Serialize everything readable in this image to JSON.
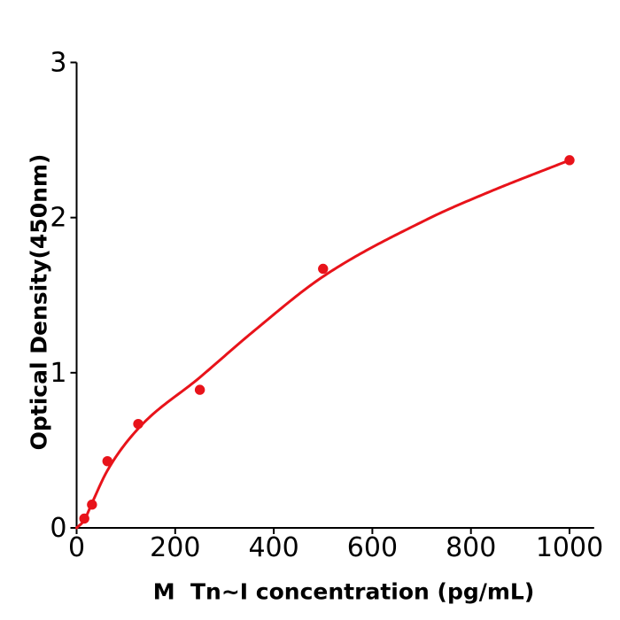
{
  "figure": {
    "background": "#ffffff",
    "axis_color": "#000000",
    "text_color": "#000000"
  },
  "chart_data": {
    "type": "scatter",
    "title": "",
    "xlabel": "M  Tn~I concentration (pg/mL)",
    "ylabel": "Optical Density(450nm)",
    "x_ticks": [
      "0",
      "200",
      "400",
      "600",
      "800",
      "1000"
    ],
    "x_tick_values": [
      0,
      200,
      400,
      600,
      800,
      1000
    ],
    "y_ticks": [
      "0",
      "1",
      "2",
      "3"
    ],
    "y_tick_values": [
      0,
      1,
      2,
      3
    ],
    "xlim": [
      0,
      1050
    ],
    "ylim": [
      0,
      3
    ],
    "grid": false,
    "legend_position": "none",
    "series": [
      {
        "name": "standard-data-points",
        "type": "scatter",
        "color": "#e8131a",
        "marker": "circle",
        "points": [
          [
            15.6,
            0.06
          ],
          [
            31.2,
            0.15
          ],
          [
            62.5,
            0.43
          ],
          [
            125,
            0.67
          ],
          [
            250,
            0.89
          ],
          [
            500,
            1.67
          ],
          [
            1000,
            2.37
          ]
        ]
      },
      {
        "name": "fitted-curve",
        "type": "line",
        "color": "#e8131a",
        "points": [
          [
            0,
            0
          ],
          [
            15.6,
            0.05
          ],
          [
            31.2,
            0.16
          ],
          [
            62.5,
            0.37
          ],
          [
            125,
            0.64
          ],
          [
            250,
            0.97
          ],
          [
            360,
            1.27
          ],
          [
            500,
            1.62
          ],
          [
            712,
            1.99
          ],
          [
            833,
            2.16
          ],
          [
            1000,
            2.37
          ]
        ]
      }
    ]
  }
}
